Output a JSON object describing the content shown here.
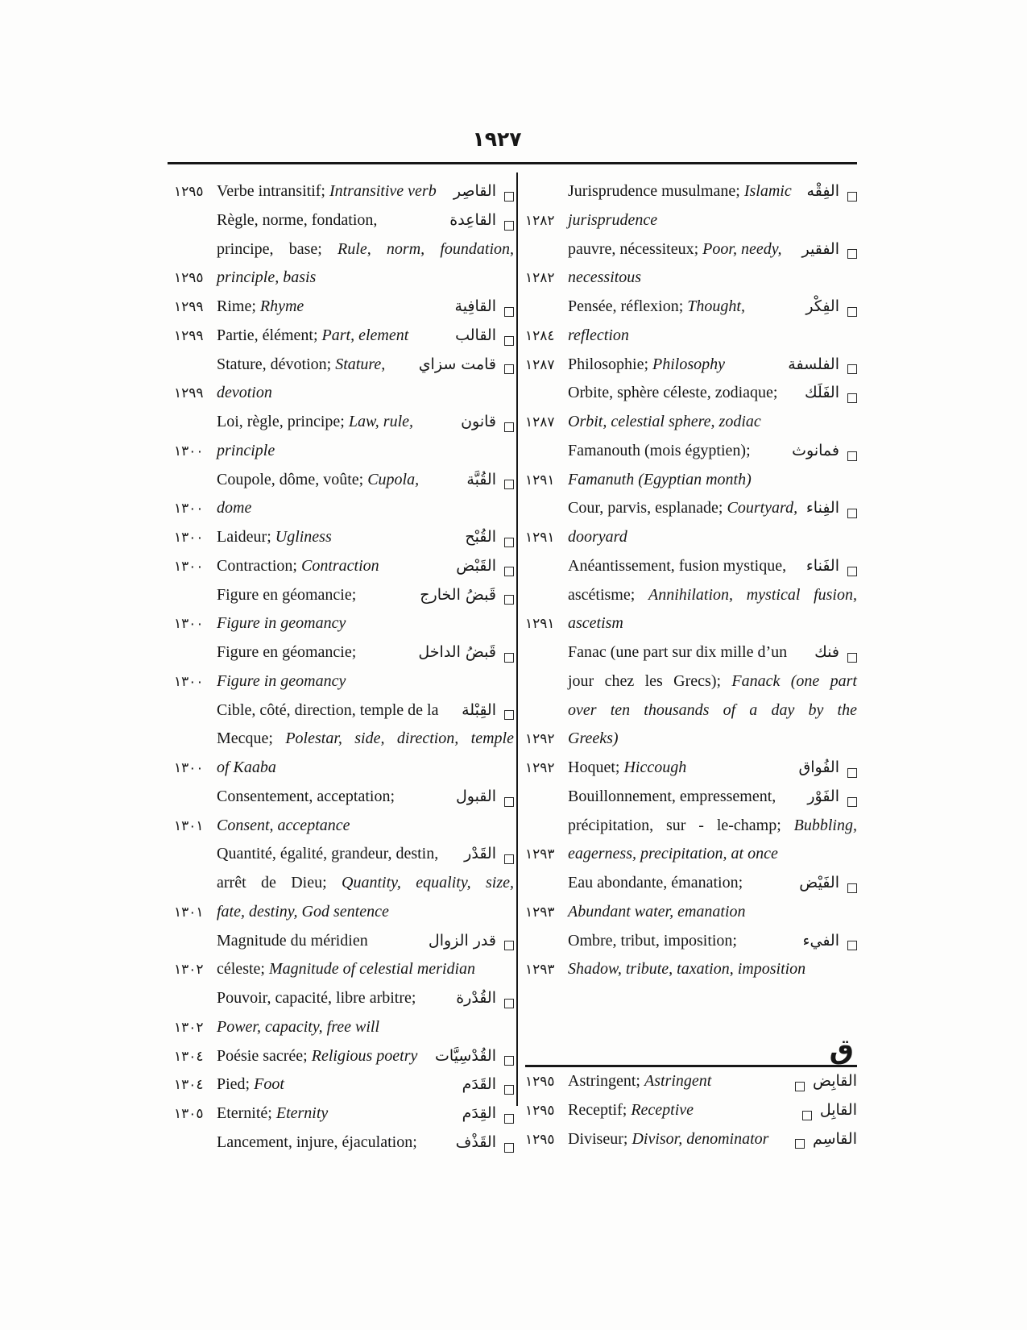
{
  "page": {
    "number": "١٩٢٧"
  },
  "colors": {
    "text": "#161616",
    "background": "#fdfdfc",
    "rule": "#171717"
  },
  "icons": {
    "entry_marker": "open-square"
  },
  "left_column": {
    "rows": [
      {
        "num": "١٢٩٥",
        "fr": "Verbe intransitif; ",
        "en": "Intransitive verb",
        "ar": "القاصِر",
        "sq": true
      },
      {
        "fr": "Règle, norme, fondation,",
        "ar": "القاعِدة",
        "sq": true
      },
      {
        "fr": "principe, base; ",
        "en": "Rule, norm, foundation,",
        "fill": true
      },
      {
        "num": "١٢٩٥",
        "en": "principle, basis"
      },
      {
        "num": "١٢٩٩",
        "fr": "Rime; ",
        "en": "Rhyme",
        "ar": "القافِية",
        "sq": true
      },
      {
        "num": "١٢٩٩",
        "fr": "Partie, élément; ",
        "en": "Part, element",
        "ar": "القالب",
        "sq": true
      },
      {
        "fr": "Stature, dévotion; ",
        "en": "Stature,",
        "ar": "قامت سزاي",
        "sq": true
      },
      {
        "num": "١٢٩٩",
        "en": "devotion"
      },
      {
        "fr": "Loi, règle, principe; ",
        "en": "Law, rule,",
        "ar": "قانون",
        "sq": true
      },
      {
        "num": "١٣٠٠",
        "en": "principle"
      },
      {
        "fr": "Coupole, dôme, voûte; ",
        "en": "Cupola,",
        "ar": "القُبَّة",
        "sq": true
      },
      {
        "num": "١٣٠٠",
        "en": "dome"
      },
      {
        "num": "١٣٠٠",
        "fr": "Laideur; ",
        "en": "Ugliness",
        "ar": "القُبْح",
        "sq": true
      },
      {
        "num": "١٣٠٠",
        "fr": "Contraction; ",
        "en": "Contraction",
        "ar": "القَبْض",
        "sq": true
      },
      {
        "fr": "Figure en géomancie;",
        "ar": "قَبضُ الخارج",
        "sq": true
      },
      {
        "num": "١٣٠٠",
        "en": "Figure in geomancy"
      },
      {
        "fr": "Figure en géomancie;",
        "ar": "قَبضُ الداخل",
        "sq": true
      },
      {
        "num": "١٣٠٠",
        "en": "Figure in geomancy"
      },
      {
        "fr": "Cible, côté, direction, temple de la",
        "ar": "القِبْلة",
        "sq": true
      },
      {
        "fr": "Mecque; ",
        "en": "Polestar, side, direction, temple",
        "fill": true
      },
      {
        "num": "١٣٠٠",
        "en": "of Kaaba"
      },
      {
        "fr": "Consentement, acceptation;",
        "ar": "القبول",
        "sq": true
      },
      {
        "num": "١٣٠١",
        "en": "Consent, acceptance"
      },
      {
        "fr": "Quantité, égalité, grandeur, destin,",
        "ar": "القَدْر",
        "sq": true
      },
      {
        "fr": "arrêt de Dieu; ",
        "en": "Quantity, equality, size,",
        "fill": true
      },
      {
        "num": "١٣٠١",
        "en": "fate, destiny, God sentence"
      },
      {
        "fr": "Magnitude du méridien",
        "ar": "قدر الزوال",
        "sq": true
      },
      {
        "num": "١٣٠٢",
        "fr": "céleste; ",
        "en": "Magnitude of celestial meridian"
      },
      {
        "fr": "Pouvoir, capacité, libre arbitre;",
        "ar": "القُدْرة",
        "sq": true
      },
      {
        "num": "١٣٠٢",
        "en": "Power, capacity, free will"
      },
      {
        "num": "١٣٠٤",
        "fr": "Poésie sacrée; ",
        "en": "Religious poetry",
        "ar": "القُدْسِيَّات",
        "sq": true
      },
      {
        "num": "١٣٠٤",
        "fr": "Pied; ",
        "en": "Foot",
        "ar": "القَدَم",
        "sq": true
      },
      {
        "num": "١٣٠٥",
        "fr": "Eternité; ",
        "en": "Eternity",
        "ar": "القِدَم",
        "sq": true
      },
      {
        "fr": "Lancement, injure, éjaculation;",
        "ar": "القَذْف",
        "sq": true
      }
    ]
  },
  "right_column": {
    "rows": [
      {
        "fr": "Jurisprudence musulmane; ",
        "en": "Islamic",
        "ar": "الفِقْه",
        "sq": true
      },
      {
        "num": "١٢٨٢",
        "en": "jurisprudence"
      },
      {
        "fr": "pauvre, nécessiteux; ",
        "en": "Poor, needy,",
        "ar": "الفقير",
        "sq": true
      },
      {
        "num": "١٢٨٢",
        "en": "necessitous"
      },
      {
        "fr": "Pensée, réflexion; ",
        "en": "Thought,",
        "ar": "الفِكْر",
        "sq": true
      },
      {
        "num": "١٢٨٤",
        "en": "reflection"
      },
      {
        "num": "١٢٨٧",
        "fr": "Philosophie; ",
        "en": "Philosophy",
        "ar": "الفلسفة",
        "sq": true
      },
      {
        "fr": "Orbite, sphère céleste, zodiaque;",
        "ar": "الفَلَك",
        "sq": true
      },
      {
        "num": "١٢٨٧",
        "en": "Orbit, celestial sphere, zodiac"
      },
      {
        "fr": "Famanouth (mois égyptien);",
        "ar": "فمانوث",
        "sq": true
      },
      {
        "num": "١٢٩١",
        "en": "Famanuth (Egyptian month)"
      },
      {
        "fr": "Cour, parvis, esplanade; ",
        "en": "Courtyard,",
        "ar": "الفِناء",
        "sq": true
      },
      {
        "num": "١٢٩١",
        "en": "dooryard"
      },
      {
        "fr": "Anéantissement, fusion mystique,",
        "ar": "الفَناء",
        "sq": true
      },
      {
        "fr": "ascétisme; ",
        "en": "Annihilation, mystical fusion,",
        "fill": true
      },
      {
        "num": "١٢٩١",
        "en": "ascetism"
      },
      {
        "fr": "Fanac (une part sur dix mille d’un",
        "ar": "فنك",
        "sq": true
      },
      {
        "fr": "jour chez les Grecs); ",
        "en": "Fanack (one part",
        "fill": true
      },
      {
        "en": "over ten thousands of a day by the",
        "fill": true
      },
      {
        "num": "١٢٩٢",
        "en": "Greeks)"
      },
      {
        "num": "١٢٩٢",
        "fr": "Hoquet; ",
        "en": "Hiccough",
        "ar": "الفُواق",
        "sq": true
      },
      {
        "fr": "Bouillonnement, empressement,",
        "ar": "الفَوْر",
        "sq": true
      },
      {
        "fr": "précipitation, sur - le-champ; ",
        "en": "Bubbling,",
        "fill": true
      },
      {
        "num": "١٢٩٣",
        "en": "eagerness, precipitation, at once"
      },
      {
        "fr": "Eau abondante, émanation;",
        "ar": "الفَيْض",
        "sq": true
      },
      {
        "num": "١٢٩٣",
        "en": "Abundant water, emanation"
      },
      {
        "fr": "Ombre, tribut, imposition;",
        "ar": "الفيء",
        "sq": true
      },
      {
        "num": "١٢٩٣",
        "en": "Shadow, tribute, taxation, imposition"
      }
    ],
    "section_letter": "ق",
    "section_rows": [
      {
        "num": "١٢٩٥",
        "fr": "Astringent; ",
        "en": "Astringent",
        "ar": "القابِض",
        "sq": true,
        "sq_left": true
      },
      {
        "num": "١٢٩٥",
        "fr": "Receptif; ",
        "en": "Receptive",
        "ar": "القابِل",
        "sq": true,
        "sq_left": true
      },
      {
        "num": "١٢٩٥",
        "fr": "Diviseur; ",
        "en": "Divisor, denominator",
        "ar": "القاسِم",
        "sq": true,
        "sq_left": true
      }
    ]
  }
}
